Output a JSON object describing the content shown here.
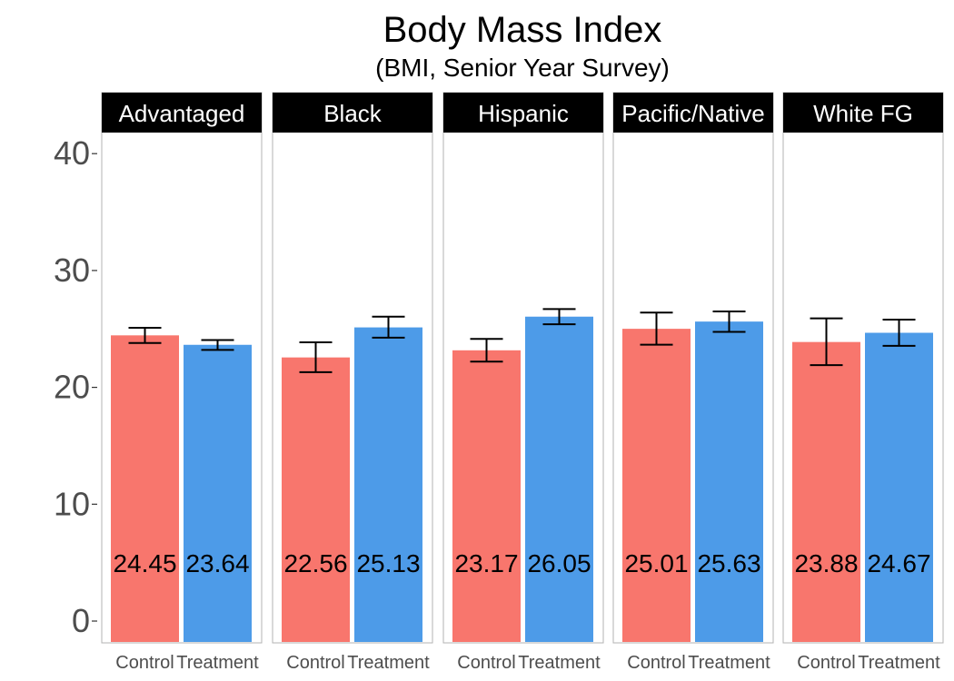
{
  "chart_data": {
    "type": "bar",
    "title": "Body Mass Index",
    "subtitle": "(BMI, Senior Year Survey)",
    "xlabel": "",
    "ylabel": "",
    "ylim": [
      0,
      40
    ],
    "yticks": [
      0,
      10,
      20,
      30,
      40
    ],
    "grid": false,
    "categories": [
      "Control",
      "Treatment"
    ],
    "colors": {
      "Control": "#f8766d",
      "Treatment": "#4d9be8"
    },
    "facets": [
      {
        "label": "Advantaged",
        "values": [
          24.45,
          23.64
        ],
        "value_labels": [
          "24.45",
          "23.64"
        ],
        "error": [
          [
            23.8,
            25.1
          ],
          [
            23.2,
            24.05
          ]
        ]
      },
      {
        "label": "Black",
        "values": [
          22.56,
          25.13
        ],
        "value_labels": [
          "22.56",
          "25.13"
        ],
        "error": [
          [
            21.3,
            23.85
          ],
          [
            24.25,
            26.05
          ]
        ]
      },
      {
        "label": "Hispanic",
        "values": [
          23.17,
          26.05
        ],
        "value_labels": [
          "23.17",
          "26.05"
        ],
        "error": [
          [
            22.2,
            24.15
          ],
          [
            25.4,
            26.7
          ]
        ]
      },
      {
        "label": "Pacific/Native",
        "values": [
          25.01,
          25.63
        ],
        "value_labels": [
          "25.01",
          "25.63"
        ],
        "error": [
          [
            23.65,
            26.4
          ],
          [
            24.75,
            26.5
          ]
        ]
      },
      {
        "label": "White FG",
        "values": [
          23.88,
          24.67
        ],
        "value_labels": [
          "23.88",
          "24.67"
        ],
        "error": [
          [
            21.9,
            25.9
          ],
          [
            23.55,
            25.8
          ]
        ]
      }
    ]
  }
}
